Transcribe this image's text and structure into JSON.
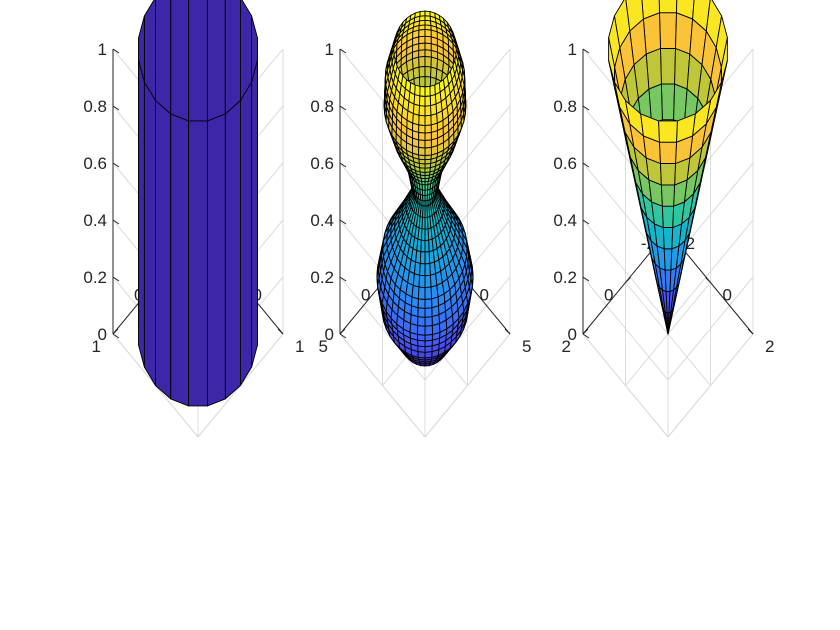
{
  "chart_data": [
    {
      "type": "surface",
      "surface": "cylinder",
      "profile": {
        "z": [
          0,
          1
        ],
        "r": [
          1,
          1
        ]
      },
      "colormap": "parula",
      "shading": "faceted",
      "meridians": 20,
      "xlim": [
        -1,
        1
      ],
      "ylim": [
        -1,
        1
      ],
      "zlim": [
        0,
        1
      ],
      "x_ticks": [
        "-1",
        "0",
        "1"
      ],
      "y_ticks": [
        "-1",
        "0",
        "1"
      ],
      "z_ticks": [
        "0",
        "0.2",
        "0.4",
        "0.6",
        "0.8",
        "1"
      ],
      "grid": true
    },
    {
      "type": "surface",
      "surface": "hourglass",
      "profile": {
        "z": [
          0,
          0.1,
          0.2,
          0.3,
          0.4,
          0.5,
          0.6,
          0.7,
          0.8,
          0.9,
          1
        ],
        "r": [
          2.2,
          3.6,
          4.0,
          3.5,
          2.2,
          1.0,
          1.5,
          2.6,
          3.4,
          3.3,
          2.6
        ]
      },
      "colormap": "parula",
      "shading": "faceted",
      "meridians": 40,
      "rings": 40,
      "xlim": [
        -5,
        5
      ],
      "ylim": [
        -5,
        5
      ],
      "zlim": [
        0,
        1
      ],
      "x_ticks": [
        "-5",
        "0",
        "5"
      ],
      "y_ticks": [
        "-5",
        "0",
        "5"
      ],
      "z_ticks": [
        "0",
        "0.2",
        "0.4",
        "0.6",
        "0.8",
        "1"
      ],
      "grid": true
    },
    {
      "type": "surface",
      "surface": "cone",
      "profile": {
        "z": [
          0,
          1
        ],
        "r": [
          0,
          2
        ]
      },
      "colormap": "parula",
      "shading": "faceted",
      "meridians": 20,
      "rings": 10,
      "xlim": [
        -2,
        2
      ],
      "ylim": [
        -2,
        2
      ],
      "zlim": [
        0,
        1
      ],
      "x_ticks": [
        "-2",
        "0",
        "2"
      ],
      "y_ticks": [
        "-2",
        "0",
        "2"
      ],
      "z_ticks": [
        "0",
        "0.2",
        "0.4",
        "0.6",
        "0.8",
        "1"
      ],
      "grid": true
    }
  ]
}
